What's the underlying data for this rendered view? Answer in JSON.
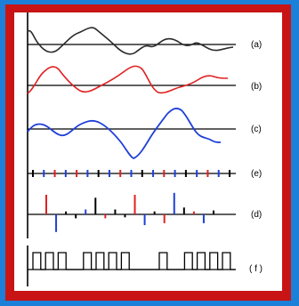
{
  "panel_labels": {
    "a": "(a)",
    "b": "(b)",
    "c": "(c)",
    "e": "(e)",
    "d": "(d)",
    "f": "( f )"
  },
  "colors": {
    "background": "#1c7fd8",
    "frame": "#c81414",
    "panel": "#ffffff",
    "trace_a": "#2a2a2a",
    "trace_b": "#e02020",
    "trace_c": "#1f3fd8",
    "axis": "#000000"
  },
  "panels": {
    "e": {
      "tick_colors": [
        "black",
        "blue",
        "red",
        "blue",
        "red",
        "blue",
        "black",
        "blue",
        "red",
        "blue",
        "black",
        "blue",
        "red",
        "blue",
        "black",
        "blue",
        "red",
        "blue",
        "black"
      ]
    },
    "d": {
      "spikes": [
        {
          "value": 1.0,
          "color": "red"
        },
        {
          "value": -0.9,
          "color": "blue"
        },
        {
          "value": 0.15,
          "color": "black"
        },
        {
          "value": -0.2,
          "color": "black"
        },
        {
          "value": 0.25,
          "color": "blue"
        },
        {
          "value": 0.85,
          "color": "black"
        },
        {
          "value": -0.2,
          "color": "red"
        },
        {
          "value": 0.25,
          "color": "black"
        },
        {
          "value": -0.15,
          "color": "black"
        },
        {
          "value": 1.0,
          "color": "red"
        },
        {
          "value": -0.55,
          "color": "blue"
        },
        {
          "value": 0.15,
          "color": "black"
        },
        {
          "value": -0.45,
          "color": "red"
        },
        {
          "value": 1.1,
          "color": "blue"
        },
        {
          "value": 0.35,
          "color": "black"
        },
        {
          "value": 0.15,
          "color": "red"
        },
        {
          "value": -0.45,
          "color": "blue"
        },
        {
          "value": 0.2,
          "color": "black"
        }
      ]
    },
    "f": {
      "pulses": [
        1,
        1,
        1,
        0,
        1,
        1,
        1,
        1,
        0,
        0,
        1,
        0,
        1,
        1,
        1,
        1
      ]
    }
  }
}
